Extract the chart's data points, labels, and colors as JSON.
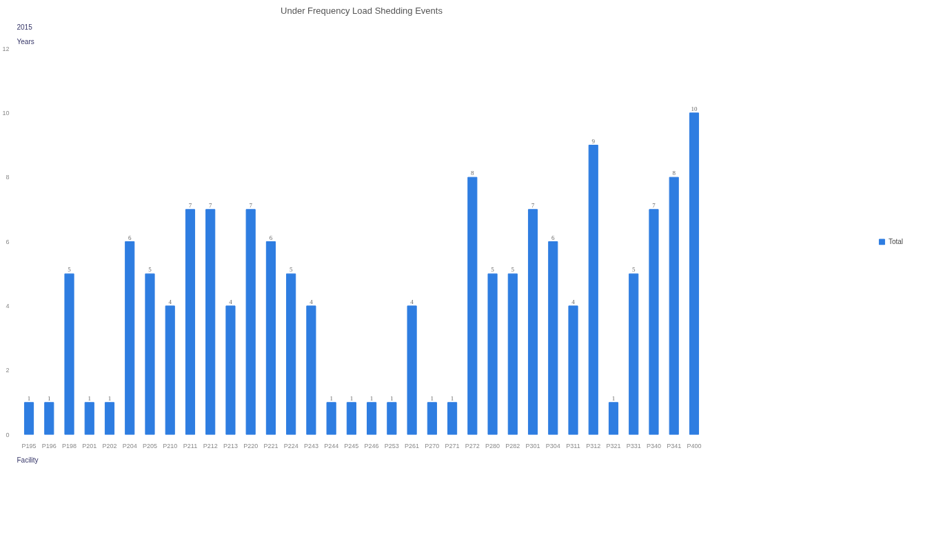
{
  "chart_data": {
    "type": "bar",
    "title": "Under Frequency Load Shedding Events",
    "categories": [
      "P195",
      "P196",
      "P198",
      "P201",
      "P202",
      "P204",
      "P205",
      "P210",
      "P211",
      "P212",
      "P213",
      "P220",
      "P221",
      "P224",
      "P243",
      "P244",
      "P245",
      "P246",
      "P253",
      "P261",
      "P270",
      "P271",
      "P272",
      "P280",
      "P282",
      "P301",
      "P304",
      "P311",
      "P312",
      "P321",
      "P331",
      "P340",
      "P341",
      "P400"
    ],
    "series": [
      {
        "name": "Total",
        "color": "#2e7de1",
        "values": [
          1,
          1,
          5,
          1,
          1,
          6,
          5,
          4,
          7,
          7,
          4,
          7,
          6,
          5,
          4,
          1,
          1,
          1,
          1,
          4,
          1,
          1,
          8,
          5,
          5,
          7,
          6,
          4,
          9,
          1,
          5,
          7,
          8,
          10
        ]
      }
    ],
    "ylim": [
      0,
      12
    ],
    "yticks": [
      0,
      2,
      4,
      6,
      8,
      10,
      12
    ],
    "grid": false,
    "legend": "right",
    "data_labels": true,
    "annotations": [
      "Years",
      "2015",
      "Facility"
    ]
  }
}
